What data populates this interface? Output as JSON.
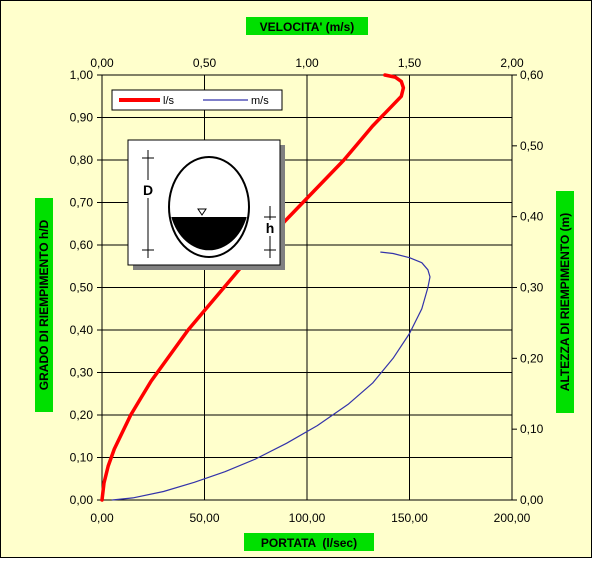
{
  "chart_data": {
    "type": "line",
    "top_axis_title": "VELOCITA' (m/s)",
    "bottom_axis_title": "PORTATA  (l/sec)",
    "left_axis_title": "GRADO DI RIEMPIMENTO h/D",
    "right_axis_title": "ALTEZZA DI RIEMPIMENTO (m)",
    "bottom_axis": {
      "range": [
        0,
        200
      ],
      "ticks": [
        "0,00",
        "50,00",
        "100,00",
        "150,00",
        "200,00"
      ]
    },
    "top_axis": {
      "range": [
        0,
        2
      ],
      "ticks": [
        "0,00",
        "0,50",
        "1,00",
        "1,50",
        "2,00"
      ]
    },
    "left_axis": {
      "range": [
        0,
        1
      ],
      "ticks": [
        "0,00",
        "0,10",
        "0,20",
        "0,30",
        "0,40",
        "0,50",
        "0,60",
        "0,70",
        "0,80",
        "0,90",
        "1,00"
      ]
    },
    "right_axis": {
      "range": [
        0,
        0.6
      ],
      "ticks": [
        "0,00",
        "0,10",
        "0,20",
        "0,30",
        "0,40",
        "0,50",
        "0,60"
      ]
    },
    "grid": true,
    "legend_placement": "top-left",
    "series": [
      {
        "name": "l/s",
        "color": "#ff0000",
        "axis": "bottom-left",
        "points": [
          [
            0,
            0
          ],
          [
            1,
            0.04
          ],
          [
            3,
            0.08
          ],
          [
            6,
            0.12
          ],
          [
            10,
            0.16
          ],
          [
            14,
            0.2
          ],
          [
            19,
            0.24
          ],
          [
            24,
            0.28
          ],
          [
            30,
            0.32
          ],
          [
            36,
            0.36
          ],
          [
            42,
            0.4
          ],
          [
            49,
            0.44
          ],
          [
            56,
            0.48
          ],
          [
            63,
            0.52
          ],
          [
            70,
            0.56
          ],
          [
            78,
            0.6
          ],
          [
            86,
            0.64
          ],
          [
            94,
            0.68
          ],
          [
            102,
            0.72
          ],
          [
            110,
            0.76
          ],
          [
            118,
            0.8
          ],
          [
            125,
            0.84
          ],
          [
            132,
            0.88
          ],
          [
            138,
            0.91
          ],
          [
            142,
            0.93
          ],
          [
            146,
            0.95
          ],
          [
            147,
            0.97
          ],
          [
            146,
            0.985
          ],
          [
            143,
            0.995
          ],
          [
            138,
            1.0
          ]
        ]
      },
      {
        "name": "m/s",
        "color": "#3333aa",
        "axis": "top-right",
        "points": [
          [
            0.05,
            0.0
          ],
          [
            0.15,
            0.003
          ],
          [
            0.3,
            0.012
          ],
          [
            0.45,
            0.025
          ],
          [
            0.6,
            0.04
          ],
          [
            0.75,
            0.058
          ],
          [
            0.9,
            0.08
          ],
          [
            1.05,
            0.105
          ],
          [
            1.2,
            0.135
          ],
          [
            1.32,
            0.165
          ],
          [
            1.42,
            0.2
          ],
          [
            1.5,
            0.235
          ],
          [
            1.56,
            0.27
          ],
          [
            1.59,
            0.3
          ],
          [
            1.6,
            0.315
          ],
          [
            1.59,
            0.325
          ],
          [
            1.56,
            0.335
          ],
          [
            1.5,
            0.342
          ],
          [
            1.42,
            0.348
          ],
          [
            1.36,
            0.35
          ]
        ]
      }
    ],
    "legend": [
      "l/s",
      "m/s"
    ],
    "inset": {
      "label_D": "D",
      "label_h": "h"
    }
  }
}
